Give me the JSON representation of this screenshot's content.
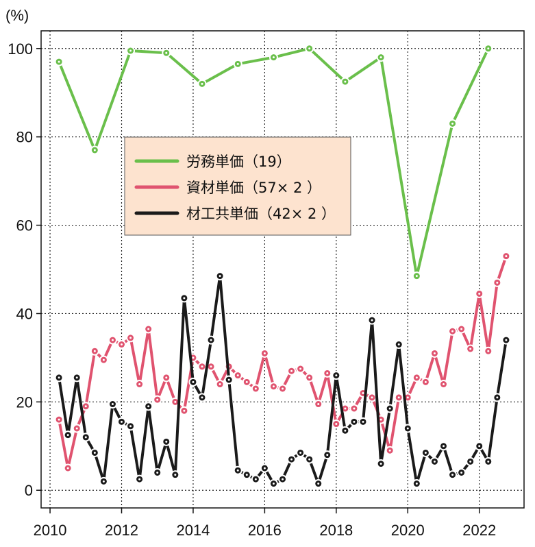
{
  "chart_data": {
    "type": "line",
    "title": "",
    "xlabel": "",
    "ylabel": "",
    "y_unit_label": "(%)",
    "xlim": [
      2009.75,
      2023.25
    ],
    "ylim": [
      -4,
      104
    ],
    "x_ticks": [
      2010,
      2012,
      2014,
      2016,
      2018,
      2020,
      2022
    ],
    "y_ticks": [
      0,
      20,
      40,
      60,
      80,
      100
    ],
    "grid": true,
    "legend_position": "center-left",
    "legend_background": "#fde3cf",
    "series": [
      {
        "name": "労務単価（19）",
        "color": "#6abf4b",
        "x": [
          2010.25,
          2011.25,
          2012.25,
          2013.25,
          2014.25,
          2015.25,
          2016.25,
          2017.25,
          2018.25,
          2019.25,
          2020.25,
          2021.25,
          2022.25
        ],
        "y": [
          97,
          77,
          99.5,
          99,
          92,
          96.5,
          98,
          100,
          92.5,
          98,
          48.5,
          83,
          100
        ]
      },
      {
        "name": "資材単価（57× 2 ）",
        "color": "#e0536f",
        "x": [
          2010.25,
          2010.5,
          2010.75,
          2011,
          2011.25,
          2011.5,
          2011.75,
          2012,
          2012.25,
          2012.5,
          2012.75,
          2013,
          2013.25,
          2013.5,
          2013.75,
          2014,
          2014.25,
          2014.5,
          2014.75,
          2015,
          2015.25,
          2015.5,
          2015.75,
          2016,
          2016.25,
          2016.5,
          2016.75,
          2017,
          2017.25,
          2017.5,
          2017.75,
          2018,
          2018.25,
          2018.5,
          2018.75,
          2019,
          2019.25,
          2019.5,
          2019.75,
          2020,
          2020.25,
          2020.5,
          2020.75,
          2021,
          2021.25,
          2021.5,
          2021.75,
          2022,
          2022.25,
          2022.5,
          2022.75
        ],
        "y": [
          16,
          5,
          14,
          19,
          31.5,
          29.5,
          34,
          33,
          34.5,
          24,
          36.5,
          20.5,
          25.5,
          20,
          18,
          30,
          28,
          28,
          24,
          28,
          26,
          24.5,
          23,
          31,
          23.5,
          23,
          27,
          27.5,
          25.5,
          19.5,
          26.5,
          15,
          18.5,
          18.5,
          22,
          21,
          16,
          9,
          21,
          21,
          25.5,
          24.5,
          31,
          24,
          36,
          36.5,
          32,
          44.5,
          31.5,
          47,
          53
        ]
      },
      {
        "name": "材工共単価（42× 2 ）",
        "color": "#1a1a1a",
        "x": [
          2010.25,
          2010.5,
          2010.75,
          2011,
          2011.25,
          2011.5,
          2011.75,
          2012,
          2012.25,
          2012.5,
          2012.75,
          2013,
          2013.25,
          2013.5,
          2013.75,
          2014,
          2014.25,
          2014.5,
          2014.75,
          2015,
          2015.25,
          2015.5,
          2015.75,
          2016,
          2016.25,
          2016.5,
          2016.75,
          2017,
          2017.25,
          2017.5,
          2017.75,
          2018,
          2018.25,
          2018.5,
          2018.75,
          2019,
          2019.25,
          2019.5,
          2019.75,
          2020,
          2020.25,
          2020.5,
          2020.75,
          2021,
          2021.25,
          2021.5,
          2021.75,
          2022,
          2022.25,
          2022.5,
          2022.75
        ],
        "y": [
          25.5,
          12.5,
          25.5,
          12,
          8.5,
          2,
          19.5,
          15.5,
          14.5,
          2.5,
          19,
          4,
          11,
          3.5,
          43.5,
          24.5,
          21,
          34,
          48.5,
          25,
          4.5,
          3.5,
          2.5,
          5,
          1.5,
          2.5,
          7,
          8.5,
          7,
          1.5,
          8,
          26,
          13.5,
          15.5,
          15.5,
          38.5,
          6,
          18.5,
          33,
          14,
          1.5,
          8.5,
          6.5,
          10,
          3.5,
          4,
          6.5,
          10,
          6.5,
          21,
          34
        ]
      }
    ]
  }
}
